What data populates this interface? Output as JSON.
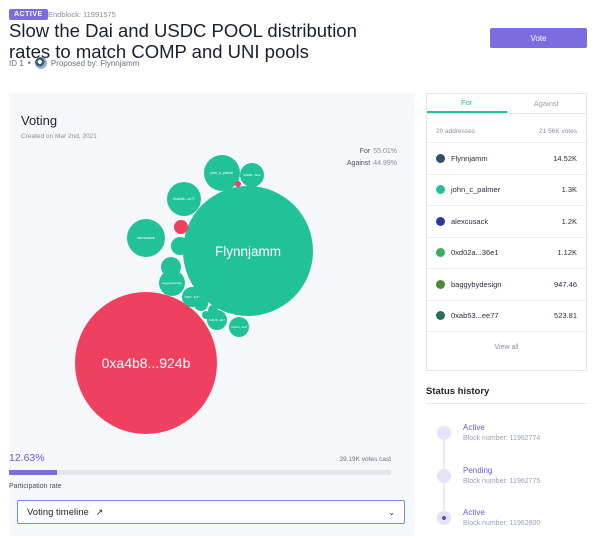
{
  "header": {
    "badge": "ACTIVE",
    "endblock": "Endblock: 11991575",
    "title": "Slow the Dai and USDC POOL distribution rates to match COMP and UNI pools",
    "id": "ID 1",
    "separator": "•",
    "proposed_by": "Proposed by: Flynnjamm",
    "vote_label": "Vote"
  },
  "voting": {
    "title": "Voting",
    "created": "Created on Mar 2nd, 2021",
    "for_label": "For",
    "for_pct": "55.01%",
    "against_label": "Against",
    "against_pct": "44.99%",
    "bubble_labels": {
      "flynnjamm": "Flynnjamm",
      "hex": "0xa4b8...924b",
      "john": "john_c_palmer",
      "alexcusack": "alexcusack",
      "baggy": "baggybydesign",
      "b1": "0x8f8b...8fe1",
      "b2": "0xabb6...ce77",
      "b3": "0x8f7c...8e33",
      "b4": "0x35d7...e4e0",
      "b5": "0xa0d2...55e6",
      "b6": "0x81d8...a8c7",
      "b7": "0xd6e1...1bc9"
    },
    "participation_pct": "12.63%",
    "participation_value": 0.1263,
    "votes_cast": "39.19K votes cast",
    "participation_label": "Participation rate",
    "timeline_label": "Voting timeline",
    "timeline_icon": "↗",
    "chevron": "⌄"
  },
  "votes_card": {
    "tab_for": "For",
    "tab_against": "Against",
    "addresses": "20 addresses",
    "total_votes": "21.56K votes",
    "voters": [
      {
        "name": "Flynnjamm",
        "amount": "14.52K",
        "color": "#2f4f6f"
      },
      {
        "name": "john_c_palmer",
        "amount": "1.3K",
        "color": "#21c298"
      },
      {
        "name": "alexcusack",
        "amount": "1.2K",
        "color": "#2b3aa0"
      },
      {
        "name": "0xd02a...36e1",
        "amount": "1.12K",
        "color": "#3cae5c"
      },
      {
        "name": "baggybydesign",
        "amount": "947.46",
        "color": "#4a8a3c"
      },
      {
        "name": "0xab53...ee77",
        "amount": "523.81",
        "color": "#2a6e5e"
      }
    ],
    "view_all": "View all"
  },
  "status_history": {
    "title": "Status history",
    "items": [
      {
        "name": "Active",
        "block": "Block number: 11962774"
      },
      {
        "name": "Pending",
        "block": "Block number: 11962775"
      },
      {
        "name": "Active",
        "block": "Block number: 11962800"
      }
    ]
  },
  "colors": {
    "accent": "#7b6ce0",
    "for_green": "#21c298",
    "against_red": "#f0405f"
  }
}
